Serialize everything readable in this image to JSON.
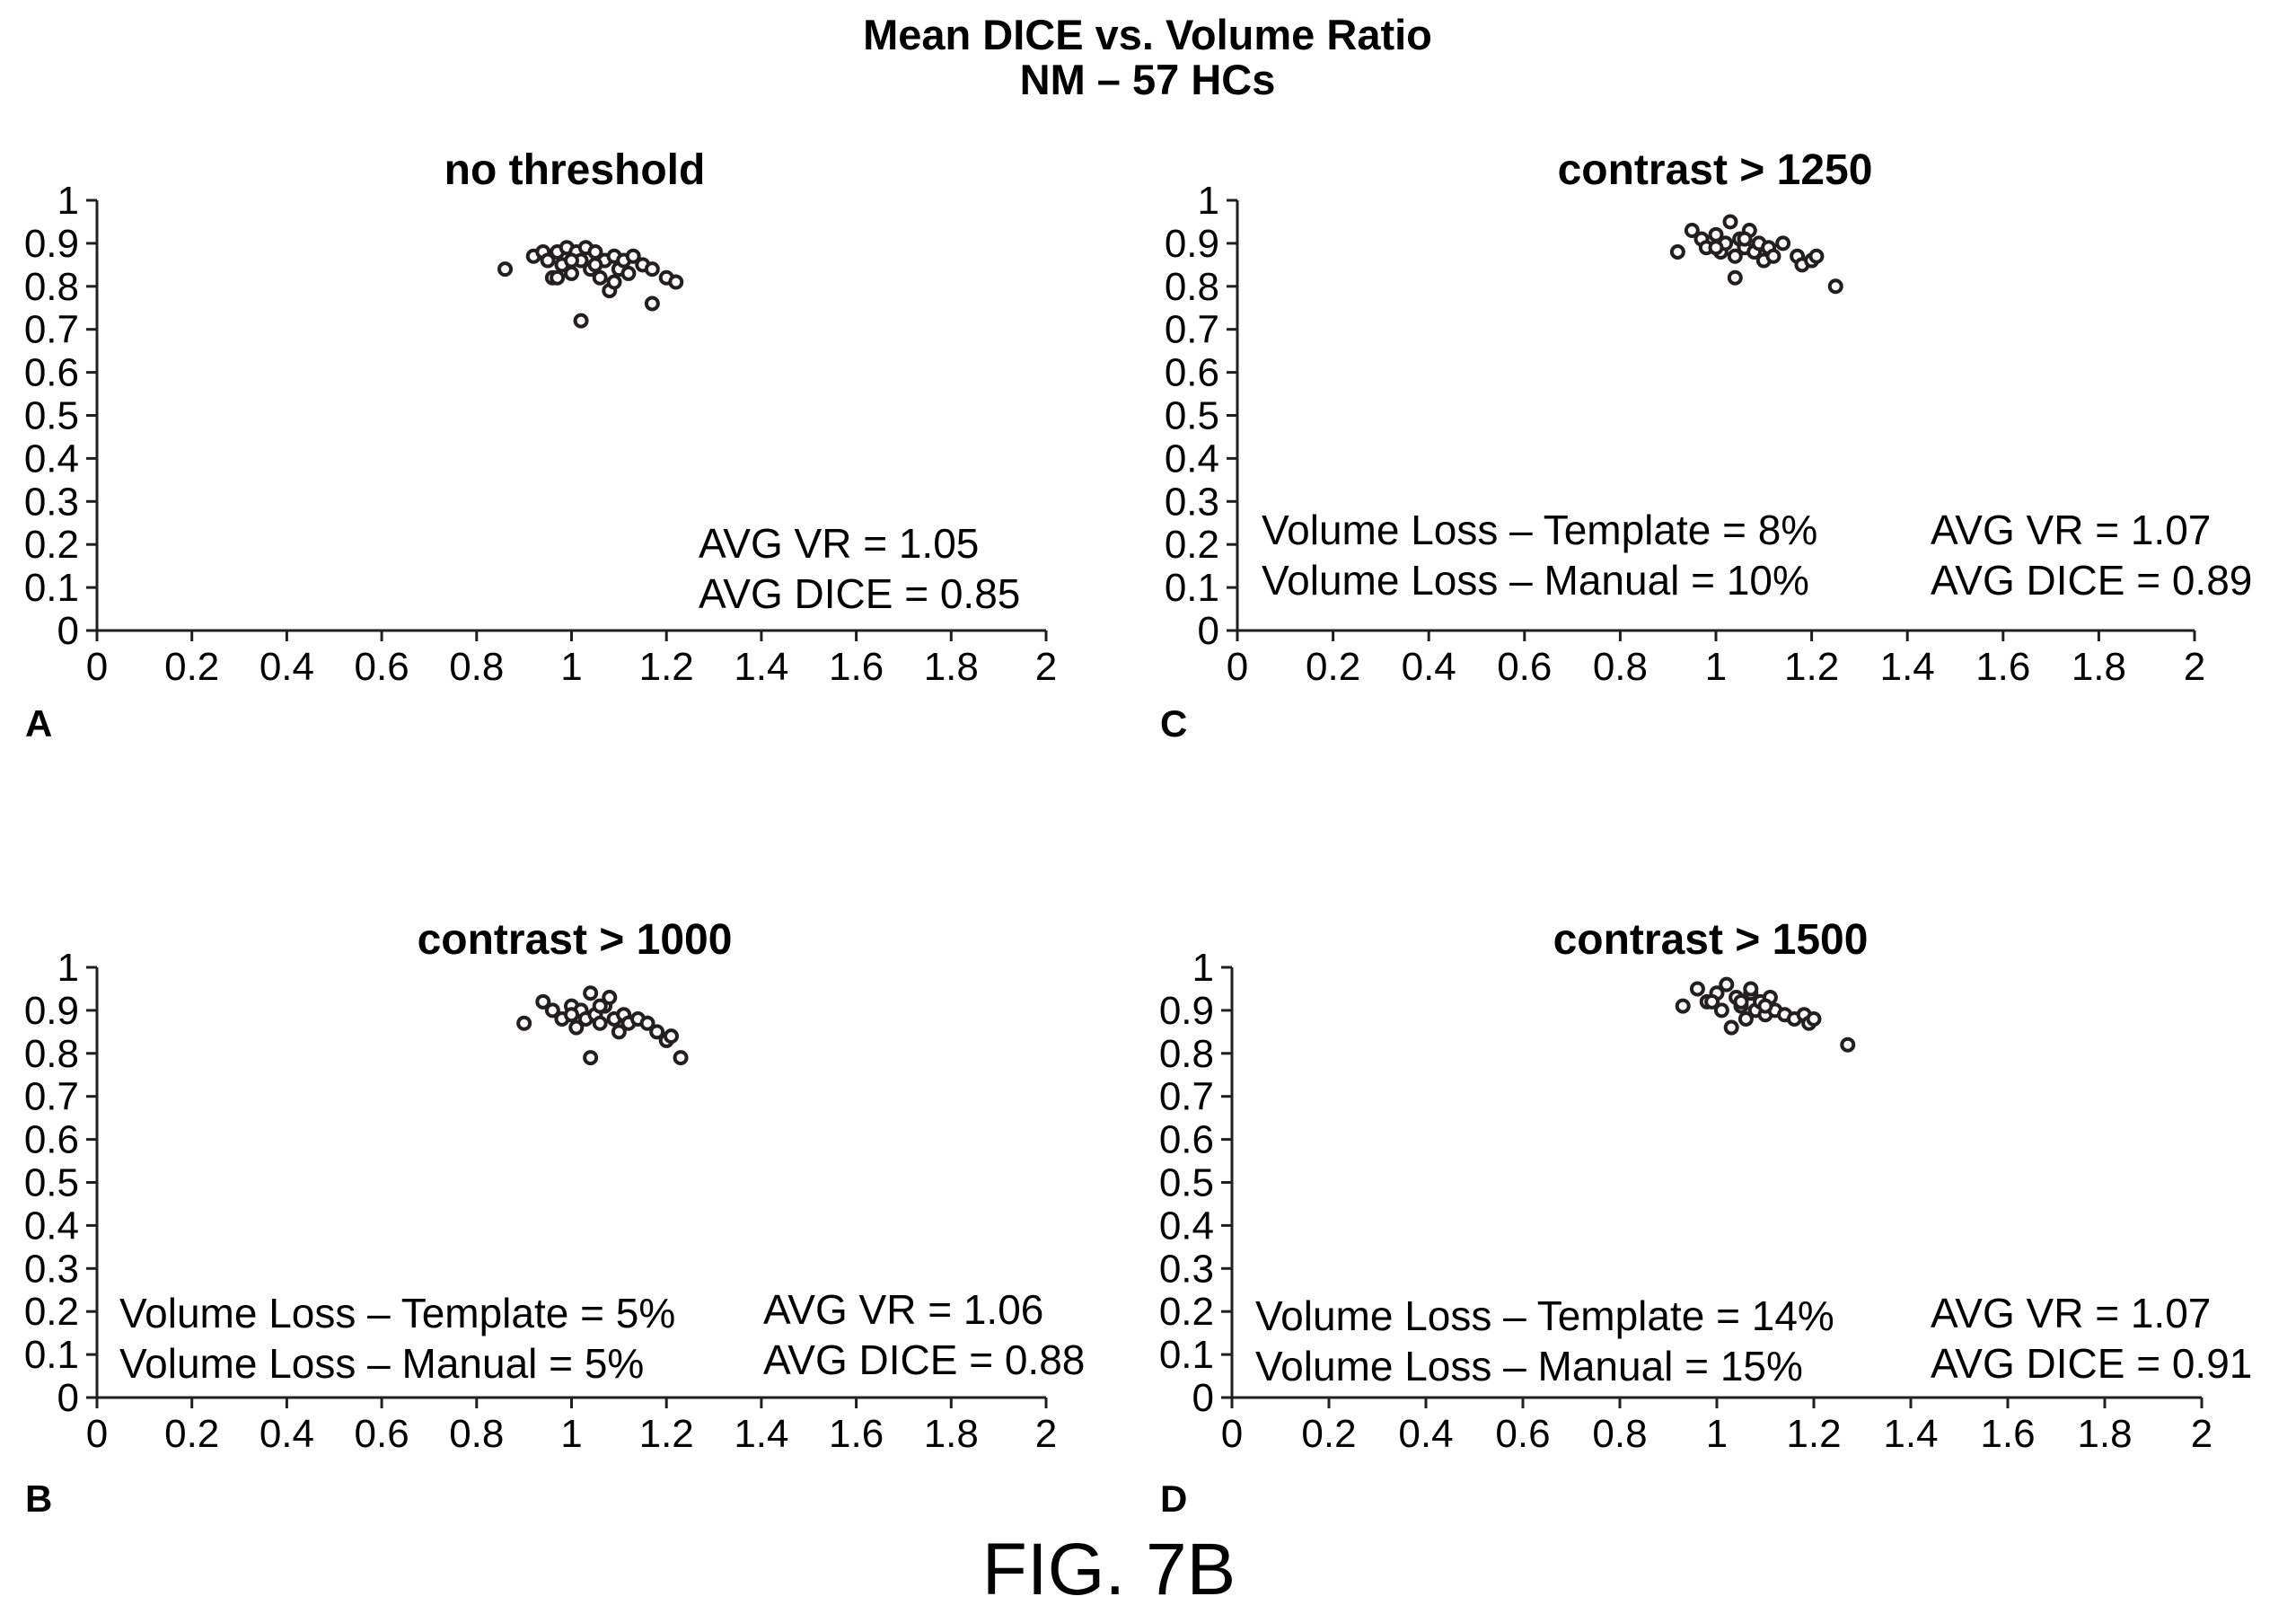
{
  "figure": {
    "title_line1": "Mean DICE vs. Volume Ratio",
    "title_line2": "NM – 57 HCs",
    "label": "FIG. 7B"
  },
  "chart_data": [
    {
      "type": "scatter",
      "id": "A",
      "panel_letter": "A",
      "title": "no threshold",
      "xlim": [
        0,
        2
      ],
      "ylim": [
        0,
        1
      ],
      "x_ticks": [
        "0",
        "0.2",
        "0.4",
        "0.6",
        "0.8",
        "1",
        "1.2",
        "1.4",
        "1.6",
        "1.8",
        "2"
      ],
      "y_ticks": [
        "0",
        "0.1",
        "0.2",
        "0.3",
        "0.4",
        "0.5",
        "0.6",
        "0.7",
        "0.8",
        "0.9",
        "1"
      ],
      "annotations_right": [
        "AVG VR = 1.05",
        "AVG DICE = 0.85"
      ],
      "annotations_left": [],
      "points": [
        [
          0.86,
          0.84
        ],
        [
          0.92,
          0.87
        ],
        [
          0.94,
          0.88
        ],
        [
          0.95,
          0.86
        ],
        [
          0.96,
          0.82
        ],
        [
          0.97,
          0.88
        ],
        [
          0.98,
          0.85
        ],
        [
          0.99,
          0.89
        ],
        [
          1.0,
          0.83
        ],
        [
          1.01,
          0.88
        ],
        [
          1.02,
          0.86
        ],
        [
          1.03,
          0.89
        ],
        [
          1.04,
          0.84
        ],
        [
          1.05,
          0.88
        ],
        [
          1.06,
          0.82
        ],
        [
          1.07,
          0.86
        ],
        [
          1.08,
          0.79
        ],
        [
          1.09,
          0.87
        ],
        [
          1.1,
          0.84
        ],
        [
          1.11,
          0.86
        ],
        [
          1.12,
          0.83
        ],
        [
          1.13,
          0.87
        ],
        [
          1.15,
          0.85
        ],
        [
          1.17,
          0.84
        ],
        [
          1.2,
          0.82
        ],
        [
          1.22,
          0.81
        ],
        [
          1.17,
          0.76
        ],
        [
          1.02,
          0.72
        ],
        [
          0.97,
          0.82
        ],
        [
          1.0,
          0.86
        ],
        [
          1.05,
          0.85
        ],
        [
          1.09,
          0.81
        ]
      ]
    },
    {
      "type": "scatter",
      "id": "B",
      "panel_letter": "B",
      "title": "contrast > 1000",
      "xlim": [
        0,
        2
      ],
      "ylim": [
        0,
        1
      ],
      "x_ticks": [
        "0",
        "0.2",
        "0.4",
        "0.6",
        "0.8",
        "1",
        "1.2",
        "1.4",
        "1.6",
        "1.8",
        "2"
      ],
      "y_ticks": [
        "0",
        "0.1",
        "0.2",
        "0.3",
        "0.4",
        "0.5",
        "0.6",
        "0.7",
        "0.8",
        "0.9",
        "1"
      ],
      "annotations_left": [
        "Volume Loss – Template = 5%",
        "Volume Loss – Manual = 5%"
      ],
      "annotations_right": [
        "AVG VR = 1.06",
        "AVG DICE = 0.88"
      ],
      "points": [
        [
          0.9,
          0.87
        ],
        [
          0.94,
          0.92
        ],
        [
          0.96,
          0.9
        ],
        [
          0.98,
          0.88
        ],
        [
          1.0,
          0.91
        ],
        [
          1.01,
          0.86
        ],
        [
          1.02,
          0.9
        ],
        [
          1.03,
          0.88
        ],
        [
          1.04,
          0.94
        ],
        [
          1.05,
          0.89
        ],
        [
          1.06,
          0.87
        ],
        [
          1.07,
          0.91
        ],
        [
          1.08,
          0.93
        ],
        [
          1.09,
          0.88
        ],
        [
          1.1,
          0.85
        ],
        [
          1.11,
          0.89
        ],
        [
          1.12,
          0.87
        ],
        [
          1.14,
          0.88
        ],
        [
          1.16,
          0.87
        ],
        [
          1.18,
          0.85
        ],
        [
          1.2,
          0.83
        ],
        [
          1.21,
          0.84
        ],
        [
          1.23,
          0.79
        ],
        [
          1.04,
          0.79
        ],
        [
          1.0,
          0.89
        ],
        [
          1.06,
          0.91
        ]
      ]
    },
    {
      "type": "scatter",
      "id": "C",
      "panel_letter": "C",
      "title": "contrast > 1250",
      "xlim": [
        0,
        2
      ],
      "ylim": [
        0,
        1
      ],
      "x_ticks": [
        "0",
        "0.2",
        "0.4",
        "0.6",
        "0.8",
        "1",
        "1.2",
        "1.4",
        "1.6",
        "1.8",
        "2"
      ],
      "y_ticks": [
        "0",
        "0.1",
        "0.2",
        "0.3",
        "0.4",
        "0.5",
        "0.6",
        "0.7",
        "0.8",
        "0.9",
        "1"
      ],
      "annotations_left": [
        "Volume Loss – Template = 8%",
        "Volume Loss – Manual = 10%"
      ],
      "annotations_right": [
        "AVG VR = 1.07",
        "AVG DICE = 0.89"
      ],
      "points": [
        [
          0.92,
          0.88
        ],
        [
          0.95,
          0.93
        ],
        [
          0.97,
          0.91
        ],
        [
          0.98,
          0.89
        ],
        [
          1.0,
          0.92
        ],
        [
          1.01,
          0.88
        ],
        [
          1.02,
          0.9
        ],
        [
          1.03,
          0.95
        ],
        [
          1.04,
          0.87
        ],
        [
          1.05,
          0.91
        ],
        [
          1.06,
          0.89
        ],
        [
          1.07,
          0.93
        ],
        [
          1.08,
          0.88
        ],
        [
          1.09,
          0.9
        ],
        [
          1.1,
          0.86
        ],
        [
          1.11,
          0.89
        ],
        [
          1.12,
          0.87
        ],
        [
          1.14,
          0.9
        ],
        [
          1.17,
          0.87
        ],
        [
          1.18,
          0.85
        ],
        [
          1.2,
          0.86
        ],
        [
          1.21,
          0.87
        ],
        [
          1.25,
          0.8
        ],
        [
          1.04,
          0.82
        ],
        [
          1.0,
          0.89
        ],
        [
          1.06,
          0.91
        ]
      ]
    },
    {
      "type": "scatter",
      "id": "D",
      "panel_letter": "D",
      "title": "contrast > 1500",
      "xlim": [
        0,
        2
      ],
      "ylim": [
        0,
        1
      ],
      "x_ticks": [
        "0",
        "0.2",
        "0.4",
        "0.6",
        "0.8",
        "1",
        "1.2",
        "1.4",
        "1.6",
        "1.8",
        "2"
      ],
      "y_ticks": [
        "0",
        "0.1",
        "0.2",
        "0.3",
        "0.4",
        "0.5",
        "0.6",
        "0.7",
        "0.8",
        "0.9",
        "1"
      ],
      "annotations_left": [
        "Volume Loss – Template = 14%",
        "Volume Loss –  Manual = 15%"
      ],
      "annotations_right": [
        "AVG VR = 1.07",
        "AVG DICE = 0.91"
      ],
      "points": [
        [
          0.93,
          0.91
        ],
        [
          0.96,
          0.95
        ],
        [
          0.98,
          0.92
        ],
        [
          1.0,
          0.94
        ],
        [
          1.01,
          0.9
        ],
        [
          1.02,
          0.96
        ],
        [
          1.03,
          0.86
        ],
        [
          1.04,
          0.93
        ],
        [
          1.05,
          0.91
        ],
        [
          1.06,
          0.88
        ],
        [
          1.07,
          0.94
        ],
        [
          1.08,
          0.9
        ],
        [
          1.09,
          0.92
        ],
        [
          1.1,
          0.89
        ],
        [
          1.11,
          0.93
        ],
        [
          1.12,
          0.9
        ],
        [
          1.14,
          0.89
        ],
        [
          1.16,
          0.88
        ],
        [
          1.18,
          0.89
        ],
        [
          1.19,
          0.87
        ],
        [
          1.2,
          0.88
        ],
        [
          1.27,
          0.82
        ],
        [
          1.05,
          0.92
        ],
        [
          1.07,
          0.95
        ],
        [
          1.1,
          0.91
        ],
        [
          0.99,
          0.92
        ]
      ]
    }
  ]
}
